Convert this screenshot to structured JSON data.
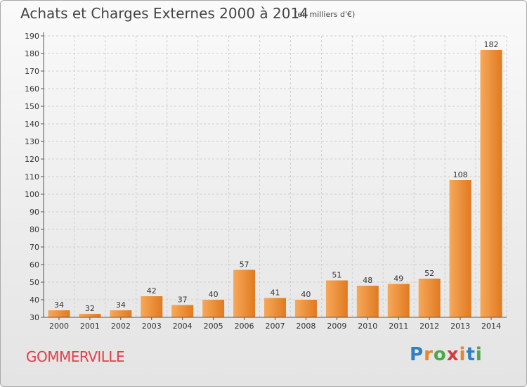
{
  "header": {
    "title": "Achats et Charges Externes 2000 à 2014",
    "unit": "(en milliers d'€)"
  },
  "footer": {
    "commune": "GOMMERVILLE",
    "logo": [
      "P",
      "r",
      "o",
      "x",
      "i",
      "t",
      "i"
    ]
  },
  "colors": {
    "bar_light": "#f7a85a",
    "bar_dark": "#e07a20",
    "grid": "#cfcfcf",
    "axis": "#555555"
  },
  "chart_data": {
    "type": "bar",
    "categories": [
      "2000",
      "2001",
      "2002",
      "2003",
      "2004",
      "2005",
      "2006",
      "2007",
      "2008",
      "2009",
      "2010",
      "2011",
      "2012",
      "2013",
      "2014"
    ],
    "values": [
      34,
      32,
      34,
      42,
      37,
      40,
      57,
      41,
      40,
      51,
      48,
      49,
      52,
      108,
      182
    ],
    "title": "Achats et Charges Externes 2000 à 2014",
    "subtitle": "(en milliers d'€)",
    "ylim": [
      30,
      190
    ],
    "yticks": [
      30,
      40,
      50,
      60,
      70,
      80,
      90,
      100,
      110,
      120,
      130,
      140,
      150,
      160,
      170,
      180,
      190
    ],
    "grid": true
  }
}
